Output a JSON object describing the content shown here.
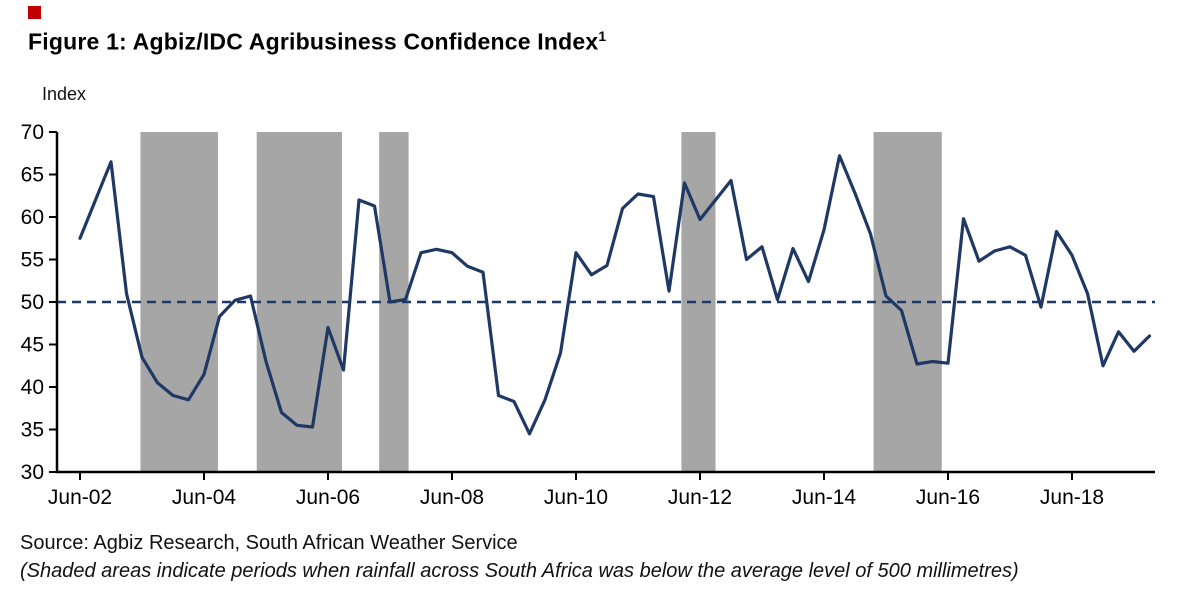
{
  "page": {
    "title": "Figure 1: Agbiz/IDC Agribusiness Confidence Index",
    "title_footnote_marker": "1",
    "source_line": "Source: Agbiz Research, South African Weather Service",
    "note_line": "(Shaded areas indicate periods when rainfall across South Africa was below the average level of 500 millimetres)"
  },
  "chart_data": {
    "type": "line",
    "title": "Figure 1: Agbiz/IDC Agribusiness Confidence Index",
    "ylabel": "Index",
    "ylim": [
      30,
      70
    ],
    "yticks": [
      70,
      65,
      60,
      55,
      50,
      45,
      40,
      35,
      30
    ],
    "xtick_labels": [
      "Jun-02",
      "Jun-04",
      "Jun-06",
      "Jun-08",
      "Jun-10",
      "Jun-12",
      "Jun-14",
      "Jun-16",
      "Jun-18"
    ],
    "xtick_every_n_points": 8,
    "grid": false,
    "legend": "none",
    "line_color": "#1f3864",
    "reference_line": {
      "value": 50,
      "style": "dashed",
      "color": "#1f3864"
    },
    "shaded_band_color": "#a6a6a6",
    "shaded_bands_meaning": "periods when rainfall across South Africa was below the average level of 500 millimetres",
    "shaded_bands": [
      {
        "from": "Jun-03",
        "to": "Sep-04",
        "from_index": 3.9,
        "to_index": 8.9
      },
      {
        "from": "Mar-05",
        "to": "Sep-06",
        "from_index": 11.4,
        "to_index": 16.9
      },
      {
        "from": "Mar-07",
        "to": "Sep-07",
        "from_index": 19.3,
        "to_index": 21.2
      },
      {
        "from": "Mar-12",
        "to": "Sep-12",
        "from_index": 38.8,
        "to_index": 41.0
      },
      {
        "from": "Mar-15",
        "to": "Jun-16",
        "from_index": 51.2,
        "to_index": 55.6
      }
    ],
    "x": [
      "Jun-02",
      "Sep-02",
      "Dec-02",
      "Mar-03",
      "Jun-03",
      "Sep-03",
      "Dec-03",
      "Mar-04",
      "Jun-04",
      "Sep-04",
      "Dec-04",
      "Mar-05",
      "Jun-05",
      "Sep-05",
      "Dec-05",
      "Mar-06",
      "Jun-06",
      "Sep-06",
      "Dec-06",
      "Mar-07",
      "Jun-07",
      "Sep-07",
      "Dec-07",
      "Mar-08",
      "Jun-08",
      "Sep-08",
      "Dec-08",
      "Mar-09",
      "Jun-09",
      "Sep-09",
      "Dec-09",
      "Mar-10",
      "Jun-10",
      "Sep-10",
      "Dec-10",
      "Mar-11",
      "Jun-11",
      "Sep-11",
      "Dec-11",
      "Mar-12",
      "Jun-12",
      "Sep-12",
      "Dec-12",
      "Mar-13",
      "Jun-13",
      "Sep-13",
      "Dec-13",
      "Mar-14",
      "Jun-14",
      "Sep-14",
      "Dec-14",
      "Mar-15",
      "Jun-15",
      "Sep-15",
      "Dec-15",
      "Mar-16",
      "Jun-16",
      "Sep-16",
      "Dec-16",
      "Mar-17",
      "Jun-17",
      "Sep-17",
      "Dec-17",
      "Mar-18",
      "Jun-18",
      "Sep-18",
      "Dec-18",
      "Mar-19",
      "Jun-19",
      "Sep-19"
    ],
    "values": [
      57.5,
      62,
      66.5,
      51,
      43.5,
      40.5,
      39,
      38.5,
      41.5,
      48.3,
      50.2,
      50.7,
      43,
      37,
      35.5,
      35.3,
      47,
      42,
      62,
      61.3,
      50,
      50.3,
      55.8,
      56.2,
      55.8,
      54.2,
      53.5,
      39,
      38.3,
      34.5,
      38.5,
      44,
      55.8,
      53.2,
      54.3,
      61,
      62.7,
      62.4,
      51.3,
      64,
      59.7,
      62,
      64.3,
      55,
      56.5,
      50.3,
      56.3,
      52.4,
      58.5,
      67.2,
      62.8,
      58,
      50.7,
      49,
      42.7,
      43,
      42.8,
      59.8,
      54.8,
      56,
      56.5,
      55.5,
      49.4,
      58.3,
      55.5,
      51,
      42.5,
      46.5,
      44.2,
      46
    ]
  }
}
